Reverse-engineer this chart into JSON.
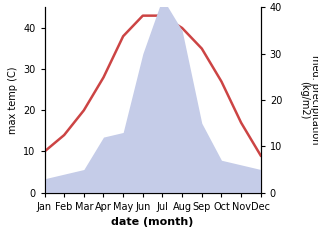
{
  "months": [
    "Jan",
    "Feb",
    "Mar",
    "Apr",
    "May",
    "Jun",
    "Jul",
    "Aug",
    "Sep",
    "Oct",
    "Nov",
    "Dec"
  ],
  "temperature": [
    10,
    14,
    20,
    28,
    38,
    43,
    43,
    40,
    35,
    27,
    17,
    9
  ],
  "precipitation": [
    3,
    4,
    5,
    12,
    13,
    30,
    42,
    35,
    15,
    7,
    6,
    5
  ],
  "temp_color": "#cc4444",
  "precip_fill_color": "#c5cce8",
  "ylabel_left": "max temp (C)",
  "ylabel_right": "med. precipitation\n(kg/m2)",
  "xlabel": "date (month)",
  "ylim_left": [
    0,
    45
  ],
  "ylim_right": [
    0,
    40
  ],
  "yticks_left": [
    0,
    10,
    20,
    30,
    40
  ],
  "yticks_right": [
    0,
    10,
    20,
    30,
    40
  ],
  "background_color": "#ffffff",
  "tick_fontsize": 7,
  "label_fontsize": 7,
  "xlabel_fontsize": 8
}
